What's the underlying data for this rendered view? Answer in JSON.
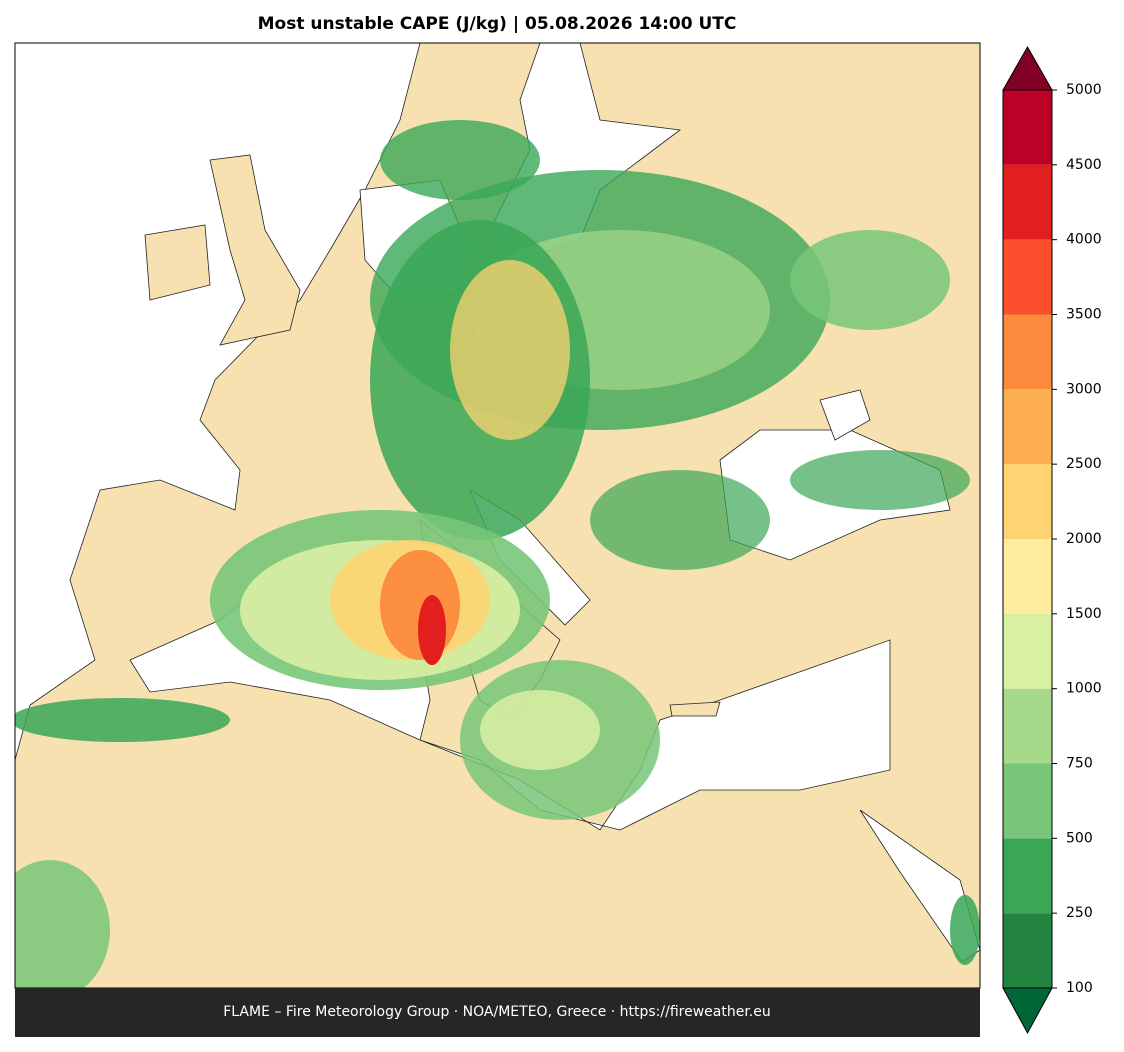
{
  "title": "Most unstable CAPE (J/kg)  |  05.08.2026 14:00 UTC",
  "footer": "FLAME – Fire Meteorology Group · NOA/METEO, Greece · https://fireweather.eu",
  "colorbar": {
    "levels": [
      100,
      250,
      500,
      750,
      1000,
      1500,
      2000,
      2500,
      3000,
      3500,
      4000,
      4500,
      5000
    ],
    "colors": [
      "#23843f",
      "#3aa757",
      "#78c679",
      "#a6d98a",
      "#d9f0a3",
      "#feec9f",
      "#fed472",
      "#fdae4f",
      "#fc8a3c",
      "#fa4e2d",
      "#e31e1e",
      "#bd0026"
    ],
    "under_color": "#006837",
    "over_color": "#800026"
  }
}
